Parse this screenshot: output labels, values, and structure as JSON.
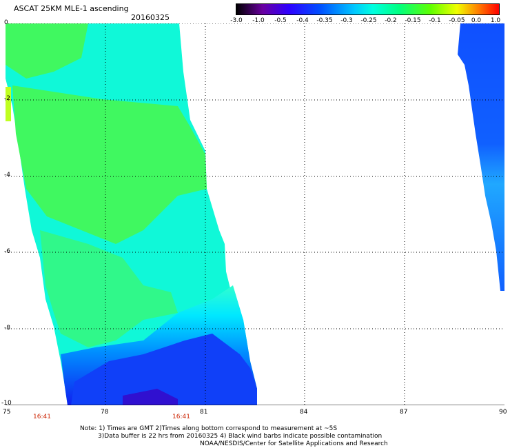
{
  "header": {
    "title": "ASCAT 25KM MLE-1 ascending",
    "date": "20160325"
  },
  "colorbar": {
    "labels": [
      "-3.0",
      "-1.0",
      "-0.5",
      "-0.4",
      "-0.35",
      "-0.3",
      "-0.25",
      "-0.2",
      "-0.15",
      "-0.1",
      "-0.05",
      "0.0",
      "1.0"
    ],
    "colors": [
      "#000000",
      "#6a00a0",
      "#2d00ff",
      "#0050ff",
      "#00c8ff",
      "#00ffe0",
      "#00ff80",
      "#60ff00",
      "#f0ff00",
      "#ff8000",
      "#ff0000"
    ]
  },
  "map": {
    "lon_ticks": [
      "75",
      "78",
      "81",
      "84",
      "87",
      "90"
    ],
    "lat_ticks": [
      "0",
      "-2",
      "-4",
      "-6",
      "-8",
      "-10"
    ],
    "lon_range": [
      75,
      90
    ],
    "lat_range": [
      -10,
      0
    ],
    "time_labels": [
      {
        "text": "16:41",
        "lon": 76
      },
      {
        "text": "16:41",
        "lon": 80.2
      }
    ]
  },
  "footer": {
    "note1": "Note: 1) Times are GMT 2)Times along bottom correspond to measurement at ~5S",
    "note2": "3)Data buffer is 22 hrs from 20160325 4) Black wind barbs indicate possible contamination",
    "note3": "NOAA/NESDIS/Center for Satellite Applications and Research"
  }
}
